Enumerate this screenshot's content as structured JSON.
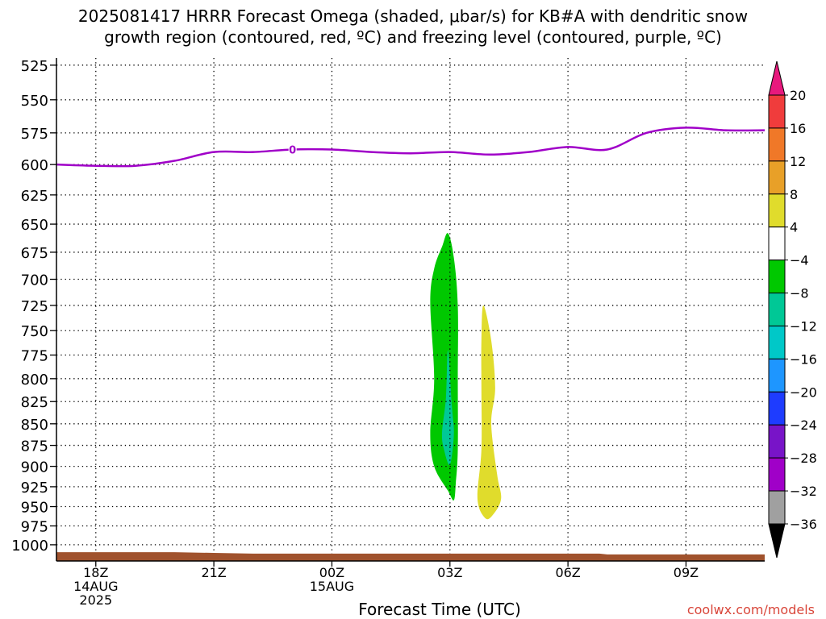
{
  "title_lines": [
    "2025081417 HRRR Forecast Omega (shaded, μbar/s) for KB#A with dendritic snow",
    "growth region (contoured, red, ºC) and freezing level (contoured, purple, ºC)"
  ],
  "credit": "coolwx.com/models",
  "colors": {
    "grid": "#000000",
    "freezing_line": "#a000c8",
    "terrain": "#a0522d",
    "credit": "#d9463a"
  },
  "chart_data": {
    "type": "heatmap",
    "xlabel": "Forecast Time (UTC)",
    "ylabel": "",
    "x_range_hours": [
      -1,
      17
    ],
    "y_range_hpa": [
      520,
      1022
    ],
    "y_scale": "log-pressure",
    "y_ticks": [
      525,
      550,
      575,
      600,
      625,
      650,
      675,
      700,
      725,
      750,
      775,
      800,
      825,
      850,
      875,
      900,
      925,
      950,
      975,
      1000
    ],
    "x_ticks": [
      {
        "hour": 0,
        "labels": [
          "18Z",
          "14AUG",
          "2025"
        ]
      },
      {
        "hour": 3,
        "labels": [
          "21Z"
        ]
      },
      {
        "hour": 6,
        "labels": [
          "00Z",
          "15AUG"
        ]
      },
      {
        "hour": 9,
        "labels": [
          "03Z"
        ]
      },
      {
        "hour": 12,
        "labels": [
          "06Z"
        ]
      },
      {
        "hour": 15,
        "labels": [
          "09Z"
        ]
      }
    ],
    "grid": "dotted",
    "freezing_level": {
      "label": "0",
      "label_at": {
        "hour": 5.0,
        "hpa": 588
      },
      "points": [
        [
          -1,
          600
        ],
        [
          0,
          601
        ],
        [
          1,
          601
        ],
        [
          2,
          597
        ],
        [
          3,
          590
        ],
        [
          4,
          590
        ],
        [
          5,
          588
        ],
        [
          6,
          588
        ],
        [
          7,
          590
        ],
        [
          8,
          591
        ],
        [
          9,
          590
        ],
        [
          10,
          592
        ],
        [
          11,
          590
        ],
        [
          12,
          586
        ],
        [
          13,
          588
        ],
        [
          14,
          575
        ],
        [
          15,
          571
        ],
        [
          16,
          573
        ],
        [
          17,
          573
        ]
      ]
    },
    "omega_regions": [
      {
        "range": "-8 to -4",
        "color": "#00c800",
        "outline": [
          [
            8.8,
            670
          ],
          [
            8.95,
            658
          ],
          [
            9.1,
            680
          ],
          [
            9.2,
            725
          ],
          [
            9.2,
            800
          ],
          [
            9.2,
            880
          ],
          [
            9.15,
            920
          ],
          [
            9.1,
            942
          ],
          [
            8.95,
            930
          ],
          [
            8.6,
            900
          ],
          [
            8.5,
            860
          ],
          [
            8.6,
            800
          ],
          [
            8.5,
            722
          ],
          [
            8.6,
            690
          ]
        ]
      },
      {
        "range": "-12 to -8",
        "color": "#00c896",
        "outline": [
          [
            8.95,
            770
          ],
          [
            9.05,
            830
          ],
          [
            9.1,
            862
          ],
          [
            9.0,
            898
          ],
          [
            8.85,
            880
          ],
          [
            8.8,
            860
          ],
          [
            8.9,
            820
          ]
        ]
      },
      {
        "range": "4 to 8",
        "color": "#e0dc2c",
        "outline": [
          [
            9.85,
            725
          ],
          [
            10.05,
            760
          ],
          [
            10.15,
            810
          ],
          [
            10.05,
            850
          ],
          [
            10.2,
            910
          ],
          [
            10.3,
            940
          ],
          [
            10.1,
            960
          ],
          [
            9.9,
            965
          ],
          [
            9.7,
            940
          ],
          [
            9.8,
            880
          ],
          [
            9.8,
            810
          ],
          [
            9.8,
            760
          ]
        ]
      }
    ],
    "terrain": {
      "points": [
        [
          -1,
          1010
        ],
        [
          2,
          1010
        ],
        [
          3,
          1011
        ],
        [
          4,
          1012
        ],
        [
          12.8,
          1012
        ],
        [
          13,
          1013
        ],
        [
          17,
          1013
        ]
      ]
    },
    "colorbar": {
      "labels": [
        "20",
        "16",
        "12",
        "8",
        "4",
        "−4",
        "−8",
        "−12",
        "−16",
        "−20",
        "−24",
        "−28",
        "−32",
        "−36"
      ],
      "colors": [
        "#e8197d",
        "#f03c3c",
        "#f07828",
        "#e8a028",
        "#e0dc2c",
        "#ffffff",
        "#00c800",
        "#00c896",
        "#00c8c8",
        "#1e96ff",
        "#1e3cff",
        "#7814c8",
        "#a000c8",
        "#a0a0a0",
        "#000000"
      ]
    }
  }
}
